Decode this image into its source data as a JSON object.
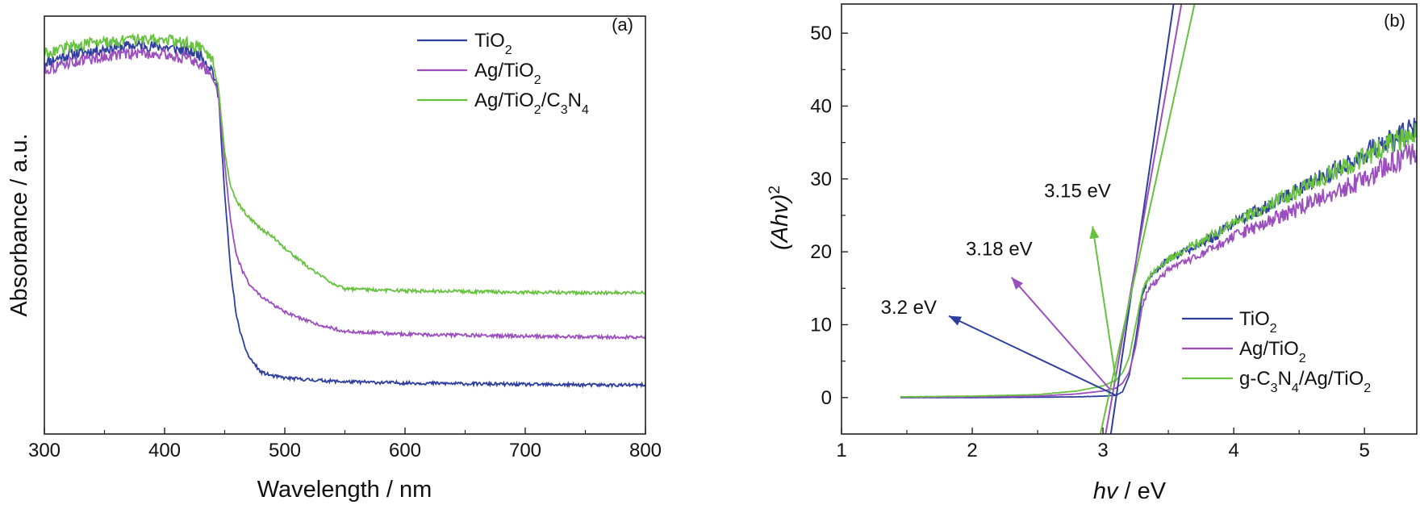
{
  "colors": {
    "TiO2": "#2f3f9e",
    "Ag/TiO2": "#9b4fbf",
    "green": "#66c23f"
  },
  "chart_data": [
    {
      "panel": "(a)",
      "type": "line",
      "xlabel": "Wavelength / nm",
      "ylabel": "Absorbance / a.u.",
      "xlim": [
        300,
        800
      ],
      "xticks": [
        "300",
        "400",
        "500",
        "600",
        "700",
        "800"
      ],
      "ylim": [
        0,
        1.08
      ],
      "yticks_shown": false,
      "legend_position": "top-right",
      "series": [
        {
          "name": "TiO2",
          "label_main": "TiO",
          "label_sub": "2",
          "color": "#2f3f9e",
          "x": [
            300,
            320,
            340,
            360,
            380,
            400,
            420,
            430,
            440,
            445,
            450,
            455,
            460,
            465,
            470,
            480,
            490,
            500,
            520,
            550,
            600,
            650,
            700,
            750,
            800
          ],
          "y": [
            0.96,
            0.98,
            0.99,
            1.0,
            1.005,
            1.0,
            0.99,
            0.98,
            0.94,
            0.87,
            0.62,
            0.42,
            0.3,
            0.24,
            0.2,
            0.16,
            0.15,
            0.145,
            0.14,
            0.135,
            0.132,
            0.13,
            0.128,
            0.127,
            0.126
          ]
        },
        {
          "name": "Ag/TiO2",
          "label_main": "Ag/TiO",
          "label_sub": "2",
          "color": "#9b4fbf",
          "x": [
            300,
            320,
            340,
            360,
            380,
            400,
            420,
            430,
            440,
            445,
            450,
            455,
            460,
            465,
            470,
            480,
            490,
            500,
            520,
            550,
            600,
            650,
            700,
            750,
            800
          ],
          "y": [
            0.94,
            0.96,
            0.97,
            0.98,
            0.985,
            0.98,
            0.97,
            0.955,
            0.93,
            0.87,
            0.7,
            0.55,
            0.46,
            0.42,
            0.39,
            0.355,
            0.335,
            0.315,
            0.29,
            0.265,
            0.258,
            0.255,
            0.253,
            0.251,
            0.25
          ]
        },
        {
          "name": "Ag/TiO2/C3N4",
          "label_parts": [
            "Ag/TiO",
            "2",
            "/C",
            "3",
            "N",
            "4"
          ],
          "color": "#66c23f",
          "x": [
            300,
            320,
            340,
            360,
            380,
            400,
            420,
            430,
            440,
            445,
            450,
            455,
            460,
            470,
            480,
            490,
            500,
            520,
            540,
            550,
            600,
            650,
            700,
            750,
            800
          ],
          "y": [
            0.985,
            1.0,
            1.01,
            1.015,
            1.02,
            1.02,
            1.01,
            1.0,
            0.97,
            0.89,
            0.73,
            0.64,
            0.6,
            0.56,
            0.53,
            0.51,
            0.48,
            0.43,
            0.39,
            0.375,
            0.37,
            0.368,
            0.366,
            0.365,
            0.365
          ]
        }
      ]
    },
    {
      "panel": "(b)",
      "type": "line",
      "xlabel_main": "hv",
      "xlabel_unit": " / eV",
      "ylabel_main": "(Ahv)",
      "ylabel_sup": "2",
      "xlim": [
        1,
        5.4
      ],
      "ylim": [
        -5,
        54
      ],
      "xticks": [
        1,
        2,
        3,
        4,
        5
      ],
      "yticks": [
        0,
        10,
        20,
        30,
        40,
        50
      ],
      "legend_position": "bottom-right",
      "series": [
        {
          "name": "TiO2",
          "label_main": "TiO",
          "label_sub": "2",
          "color": "#2f3f9e",
          "x": [
            1.45,
            2.0,
            2.5,
            2.8,
            3.0,
            3.1,
            3.15,
            3.2,
            3.25,
            3.3,
            3.35,
            3.5,
            3.8,
            4.0,
            4.5,
            5.0,
            5.4
          ],
          "y": [
            0.0,
            0.0,
            0.05,
            0.1,
            0.2,
            0.3,
            0.8,
            3.0,
            8.0,
            14.0,
            16.5,
            19.0,
            21.5,
            24.0,
            28.5,
            33.5,
            37.0
          ]
        },
        {
          "name": "Ag/TiO2",
          "label_main": "Ag/TiO",
          "label_sub": "2",
          "color": "#9b4fbf",
          "x": [
            1.45,
            2.0,
            2.5,
            2.8,
            3.0,
            3.1,
            3.15,
            3.2,
            3.25,
            3.3,
            3.35,
            3.5,
            3.8,
            4.0,
            4.5,
            5.0,
            5.4
          ],
          "y": [
            0.05,
            0.1,
            0.2,
            0.5,
            0.9,
            1.3,
            2.0,
            3.5,
            7.0,
            12.5,
            15.0,
            17.5,
            20.0,
            22.0,
            26.0,
            30.0,
            34.0
          ]
        },
        {
          "name": "g-C3N4/Ag/TiO2",
          "label_parts": [
            "g-C",
            "3",
            "N",
            "4",
            "/Ag/TiO",
            "2"
          ],
          "color": "#66c23f",
          "x": [
            1.45,
            2.0,
            2.5,
            2.8,
            3.0,
            3.1,
            3.15,
            3.2,
            3.25,
            3.3,
            3.35,
            3.5,
            3.8,
            4.0,
            4.5,
            5.0,
            5.4
          ],
          "y": [
            0.1,
            0.2,
            0.4,
            0.9,
            1.6,
            2.4,
            3.4,
            5.5,
            10.0,
            14.5,
            16.5,
            19.0,
            22.0,
            24.0,
            28.5,
            33.0,
            36.5
          ]
        }
      ],
      "tangent_lines": [
        {
          "series": "TiO2",
          "x": [
            3.06,
            3.54
          ],
          "y": [
            -5,
            54
          ]
        },
        {
          "series": "Ag/TiO2",
          "x": [
            3.02,
            3.6
          ],
          "y": [
            -5,
            54
          ]
        },
        {
          "series": "g-C3N4/Ag/TiO2",
          "x": [
            2.98,
            3.7
          ],
          "y": [
            -5,
            54
          ]
        }
      ],
      "annotations": [
        {
          "text": "3.2 eV",
          "series": "TiO2",
          "arrow_from": [
            3.1,
            0.3
          ],
          "arrow_to": [
            1.82,
            11.2
          ],
          "label_at": [
            1.3,
            11.5
          ]
        },
        {
          "text": "3.18 eV",
          "series": "Ag/TiO2",
          "arrow_from": [
            3.05,
            1.2
          ],
          "arrow_to": [
            2.3,
            16.5
          ],
          "label_at": [
            1.95,
            19.5
          ]
        },
        {
          "text": "3.15 eV",
          "series": "g-C3N4/Ag/TiO2",
          "arrow_from": [
            3.1,
            2.2
          ],
          "arrow_to": [
            2.92,
            23.5
          ],
          "label_at": [
            2.55,
            27.5
          ]
        }
      ]
    }
  ]
}
